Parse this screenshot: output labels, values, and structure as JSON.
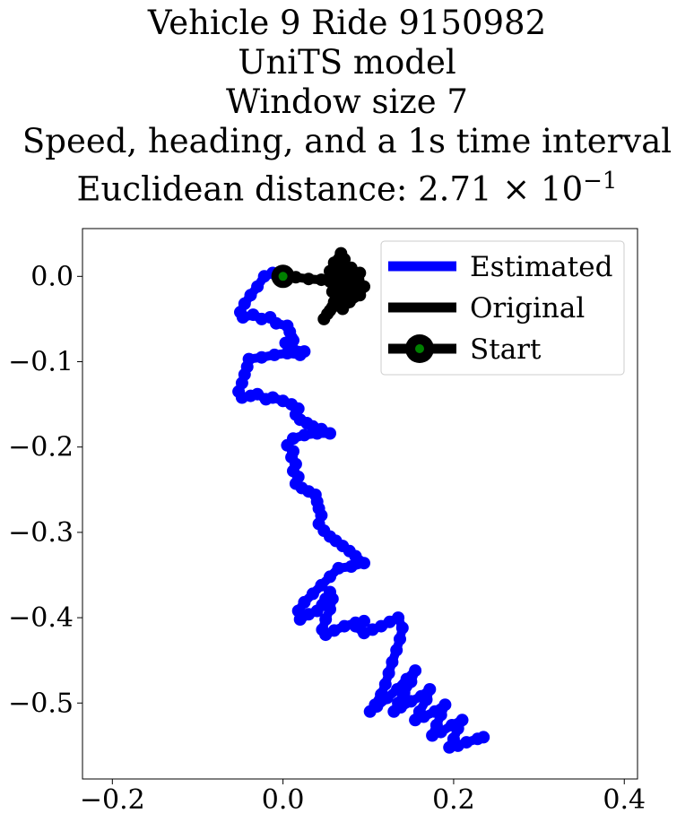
{
  "chart_data": {
    "type": "line",
    "title_lines": [
      "Vehicle 9 Ride 9150982",
      "UniTS model",
      "Window size 7",
      "Speed, heading, and a 1s time interval"
    ],
    "distance_prefix": "Euclidean distance: ",
    "distance_mantissa": "2.71",
    "distance_times": "×",
    "distance_base": "10",
    "distance_exponent": "−1",
    "xlim": [
      -0.235,
      0.4155
    ],
    "ylim": [
      -0.589,
      0.056
    ],
    "x_ticks": [
      {
        "value": -0.2,
        "label": "−0.2"
      },
      {
        "value": 0.0,
        "label": "0.0"
      },
      {
        "value": 0.2,
        "label": "0.2"
      },
      {
        "value": 0.4,
        "label": "0.4"
      }
    ],
    "y_ticks": [
      {
        "value": 0.0,
        "label": "0.0"
      },
      {
        "value": -0.1,
        "label": "−0.1"
      },
      {
        "value": -0.2,
        "label": "−0.2"
      },
      {
        "value": -0.3,
        "label": "−0.3"
      },
      {
        "value": -0.4,
        "label": "−0.4"
      },
      {
        "value": -0.5,
        "label": "−0.5"
      }
    ],
    "grid": false,
    "legend_position": "top-right",
    "series": [
      {
        "name": "Estimated",
        "color": "#0000ff",
        "marker": "o",
        "points": [
          [
            0.0,
            0.0
          ],
          [
            -0.012,
            0.004
          ],
          [
            -0.022,
            0.0
          ],
          [
            -0.03,
            -0.012
          ],
          [
            -0.038,
            -0.022
          ],
          [
            -0.045,
            -0.032
          ],
          [
            -0.05,
            -0.042
          ],
          [
            -0.047,
            -0.048
          ],
          [
            -0.035,
            -0.045
          ],
          [
            -0.025,
            -0.05
          ],
          [
            -0.015,
            -0.048
          ],
          [
            -0.008,
            -0.055
          ],
          [
            0.005,
            -0.058
          ],
          [
            0.008,
            -0.065
          ],
          [
            0.01,
            -0.072
          ],
          [
            0.003,
            -0.078
          ],
          [
            0.01,
            -0.082
          ],
          [
            0.012,
            -0.075
          ],
          [
            0.01,
            -0.085
          ],
          [
            0.025,
            -0.088
          ],
          [
            0.02,
            -0.092
          ],
          [
            0.005,
            -0.09
          ],
          [
            -0.01,
            -0.092
          ],
          [
            -0.025,
            -0.095
          ],
          [
            -0.04,
            -0.097
          ],
          [
            -0.042,
            -0.106
          ],
          [
            -0.045,
            -0.115
          ],
          [
            -0.048,
            -0.125
          ],
          [
            -0.052,
            -0.135
          ],
          [
            -0.048,
            -0.142
          ],
          [
            -0.038,
            -0.14
          ],
          [
            -0.03,
            -0.138
          ],
          [
            -0.02,
            -0.144
          ],
          [
            -0.012,
            -0.142
          ],
          [
            0.0,
            -0.146
          ],
          [
            0.01,
            -0.15
          ],
          [
            0.018,
            -0.155
          ],
          [
            0.015,
            -0.162
          ],
          [
            0.02,
            -0.168
          ],
          [
            0.028,
            -0.172
          ],
          [
            0.035,
            -0.176
          ],
          [
            0.045,
            -0.179
          ],
          [
            0.055,
            -0.184
          ],
          [
            0.04,
            -0.184
          ],
          [
            0.025,
            -0.186
          ],
          [
            0.012,
            -0.19
          ],
          [
            0.005,
            -0.198
          ],
          [
            0.012,
            -0.205
          ],
          [
            0.01,
            -0.212
          ],
          [
            0.015,
            -0.22
          ],
          [
            0.012,
            -0.228
          ],
          [
            0.018,
            -0.235
          ],
          [
            0.015,
            -0.243
          ],
          [
            0.022,
            -0.248
          ],
          [
            0.03,
            -0.252
          ],
          [
            0.038,
            -0.256
          ],
          [
            0.04,
            -0.264
          ],
          [
            0.042,
            -0.272
          ],
          [
            0.045,
            -0.28
          ],
          [
            0.042,
            -0.29
          ],
          [
            0.048,
            -0.298
          ],
          [
            0.055,
            -0.305
          ],
          [
            0.062,
            -0.31
          ],
          [
            0.07,
            -0.316
          ],
          [
            0.078,
            -0.322
          ],
          [
            0.085,
            -0.328
          ],
          [
            0.095,
            -0.336
          ],
          [
            0.08,
            -0.34
          ],
          [
            0.065,
            -0.342
          ],
          [
            0.055,
            -0.352
          ],
          [
            0.045,
            -0.362
          ],
          [
            0.035,
            -0.372
          ],
          [
            0.025,
            -0.382
          ],
          [
            0.018,
            -0.392
          ],
          [
            0.02,
            -0.402
          ],
          [
            0.03,
            -0.396
          ],
          [
            0.04,
            -0.392
          ],
          [
            0.046,
            -0.385
          ],
          [
            0.05,
            -0.378
          ],
          [
            0.055,
            -0.37
          ],
          [
            0.058,
            -0.378
          ],
          [
            0.055,
            -0.39
          ],
          [
            0.05,
            -0.402
          ],
          [
            0.046,
            -0.414
          ],
          [
            0.05,
            -0.42
          ],
          [
            0.06,
            -0.415
          ],
          [
            0.072,
            -0.41
          ],
          [
            0.085,
            -0.406
          ],
          [
            0.095,
            -0.404
          ],
          [
            0.085,
            -0.41
          ],
          [
            0.095,
            -0.418
          ],
          [
            0.105,
            -0.414
          ],
          [
            0.115,
            -0.41
          ],
          [
            0.125,
            -0.405
          ],
          [
            0.135,
            -0.4
          ],
          [
            0.14,
            -0.412
          ],
          [
            0.137,
            -0.425
          ],
          [
            0.133,
            -0.438
          ],
          [
            0.128,
            -0.452
          ],
          [
            0.124,
            -0.465
          ],
          [
            0.12,
            -0.478
          ],
          [
            0.115,
            -0.49
          ],
          [
            0.108,
            -0.502
          ],
          [
            0.102,
            -0.51
          ],
          [
            0.11,
            -0.504
          ],
          [
            0.122,
            -0.494
          ],
          [
            0.134,
            -0.484
          ],
          [
            0.145,
            -0.472
          ],
          [
            0.155,
            -0.462
          ],
          [
            0.15,
            -0.475
          ],
          [
            0.142,
            -0.488
          ],
          [
            0.135,
            -0.5
          ],
          [
            0.13,
            -0.51
          ],
          [
            0.138,
            -0.505
          ],
          [
            0.15,
            -0.498
          ],
          [
            0.162,
            -0.492
          ],
          [
            0.172,
            -0.484
          ],
          [
            0.168,
            -0.496
          ],
          [
            0.16,
            -0.51
          ],
          [
            0.155,
            -0.52
          ],
          [
            0.165,
            -0.516
          ],
          [
            0.178,
            -0.51
          ],
          [
            0.19,
            -0.502
          ],
          [
            0.185,
            -0.514
          ],
          [
            0.18,
            -0.526
          ],
          [
            0.175,
            -0.538
          ],
          [
            0.185,
            -0.534
          ],
          [
            0.198,
            -0.526
          ],
          [
            0.21,
            -0.52
          ],
          [
            0.205,
            -0.53
          ],
          [
            0.2,
            -0.542
          ],
          [
            0.195,
            -0.552
          ],
          [
            0.205,
            -0.55
          ],
          [
            0.215,
            -0.546
          ],
          [
            0.228,
            -0.542
          ],
          [
            0.235,
            -0.54
          ]
        ]
      },
      {
        "name": "Original",
        "color": "#000000",
        "marker": "o",
        "points": [
          [
            0.0,
            0.0
          ],
          [
            0.015,
            -0.001
          ],
          [
            0.03,
            -0.003
          ],
          [
            0.045,
            -0.004
          ],
          [
            0.055,
            -0.006
          ],
          [
            0.062,
            -0.01
          ],
          [
            0.058,
            -0.018
          ],
          [
            0.065,
            -0.025
          ],
          [
            0.06,
            -0.03
          ],
          [
            0.068,
            -0.02
          ],
          [
            0.075,
            -0.012
          ],
          [
            0.082,
            -0.006
          ],
          [
            0.088,
            0.002
          ],
          [
            0.08,
            0.01
          ],
          [
            0.07,
            0.014
          ],
          [
            0.065,
            0.005
          ],
          [
            0.072,
            -0.004
          ],
          [
            0.085,
            -0.012
          ],
          [
            0.078,
            -0.022
          ],
          [
            0.066,
            -0.028
          ],
          [
            0.058,
            -0.036
          ],
          [
            0.052,
            -0.044
          ],
          [
            0.048,
            -0.05
          ],
          [
            0.055,
            -0.04
          ],
          [
            0.062,
            -0.032
          ],
          [
            0.07,
            -0.038
          ],
          [
            0.078,
            -0.03
          ],
          [
            0.09,
            -0.022
          ],
          [
            0.095,
            -0.012
          ],
          [
            0.088,
            -0.004
          ],
          [
            0.078,
            0.004
          ],
          [
            0.068,
            0.01
          ],
          [
            0.072,
            0.02
          ],
          [
            0.068,
            0.027
          ],
          [
            0.06,
            0.016
          ],
          [
            0.055,
            0.006
          ],
          [
            0.062,
            -0.002
          ],
          [
            0.072,
            -0.008
          ],
          [
            0.082,
            -0.016
          ],
          [
            0.09,
            0.004
          ],
          [
            0.075,
            -0.026
          ],
          [
            0.065,
            -0.015
          ],
          [
            0.06,
            -0.008
          ],
          [
            0.07,
            0.0
          ]
        ]
      },
      {
        "name": "Start",
        "color": "#000000",
        "face_color": "#008000",
        "marker": "o",
        "points": [
          [
            0.0,
            0.0
          ]
        ]
      }
    ]
  }
}
